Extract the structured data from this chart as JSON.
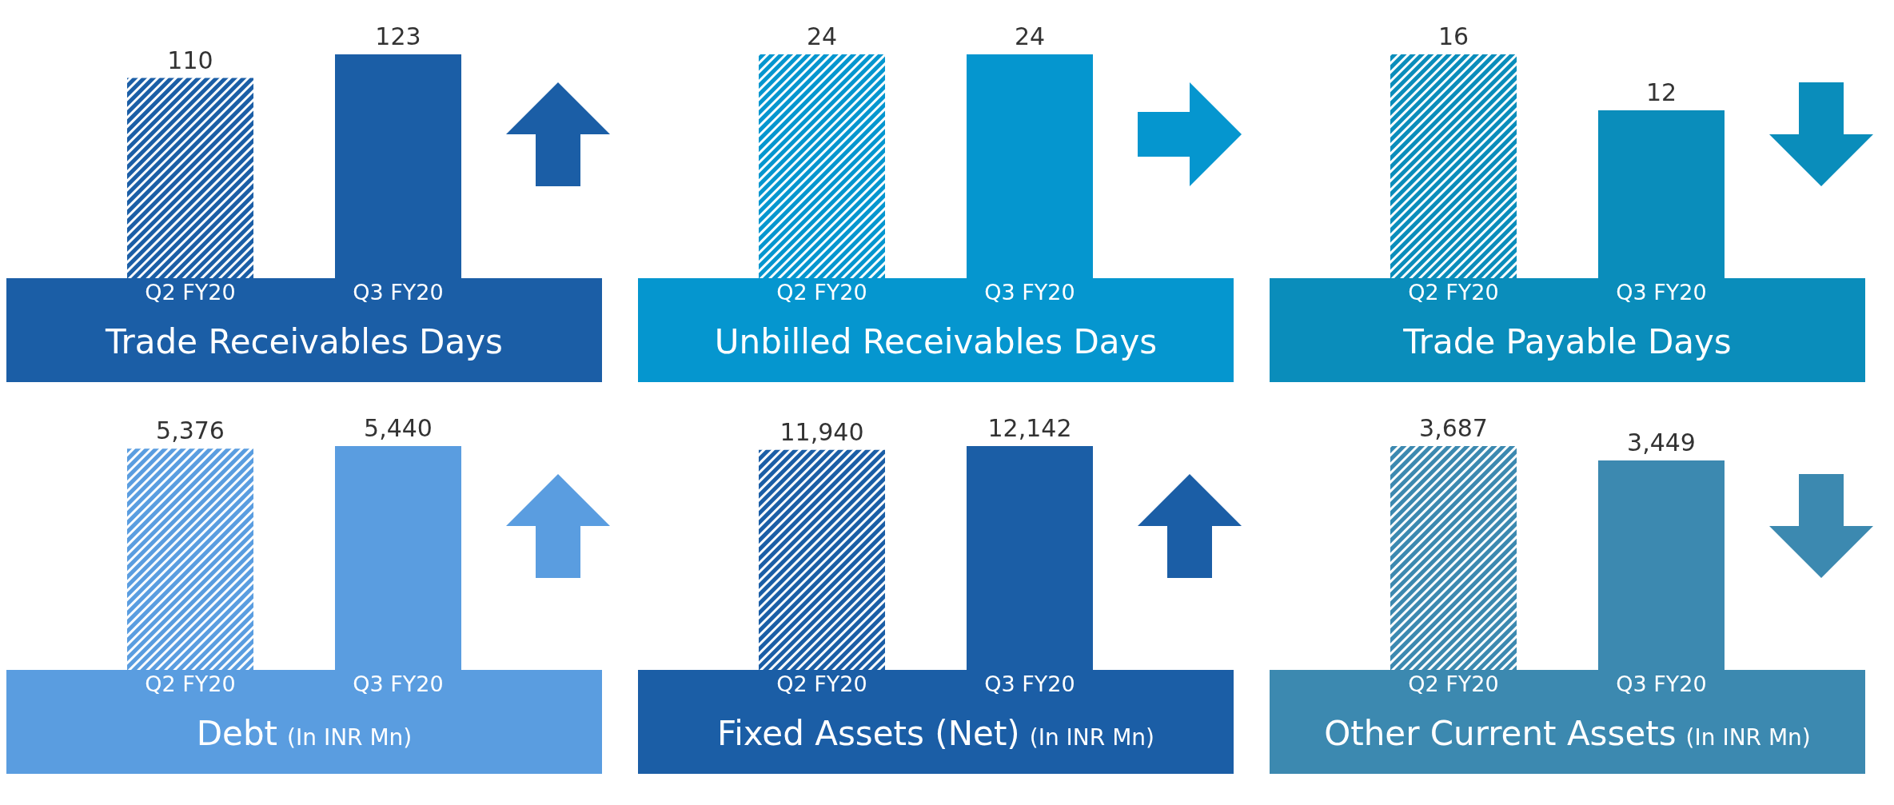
{
  "chart_data": [
    {
      "type": "bar",
      "title": "Trade Receivables Days",
      "categories": [
        "Q2 FY20",
        "Q3 FY20"
      ],
      "values": [
        110,
        123
      ],
      "value_labels": [
        "110",
        "123"
      ],
      "colors": [
        "#1b5ea6",
        "#1b5ea6"
      ]
    },
    {
      "type": "bar",
      "title": "Unbilled Receivables Days",
      "categories": [
        "Q2 FY20",
        "Q3 FY20"
      ],
      "values": [
        24,
        24
      ],
      "value_labels": [
        "24",
        "24"
      ],
      "colors": [
        "#0596cf",
        "#0596cf"
      ]
    },
    {
      "type": "bar",
      "title": "Trade Payable Days",
      "categories": [
        "Q2 FY20",
        "Q3 FY20"
      ],
      "values": [
        16,
        12
      ],
      "value_labels": [
        "16",
        "12"
      ],
      "colors": [
        "#0a8dbb",
        "#0a8dbb"
      ]
    },
    {
      "type": "bar",
      "title": "Debt",
      "subtitle": "(In INR Mn)",
      "categories": [
        "Q2 FY20",
        "Q3 FY20"
      ],
      "values": [
        5376,
        5440
      ],
      "value_labels": [
        "5,376",
        "5,440"
      ],
      "colors": [
        "#5a9de0",
        "#5a9de0"
      ]
    },
    {
      "type": "bar",
      "title": "Fixed Assets (Net)",
      "subtitle": "(In INR Mn)",
      "categories": [
        "Q2 FY20",
        "Q3 FY20"
      ],
      "values": [
        11940,
        12142
      ],
      "value_labels": [
        "11,940",
        "12,142"
      ],
      "colors": [
        "#1b5ea6",
        "#1b5ea6"
      ]
    },
    {
      "type": "bar",
      "title": "Other Current Assets",
      "subtitle": "(In INR Mn)",
      "categories": [
        "Q2 FY20",
        "Q3 FY20"
      ],
      "values": [
        3687,
        3449
      ],
      "value_labels": [
        "3,687",
        "3,449"
      ],
      "colors": [
        "#3c89b0",
        "#3c89b0"
      ]
    }
  ]
}
